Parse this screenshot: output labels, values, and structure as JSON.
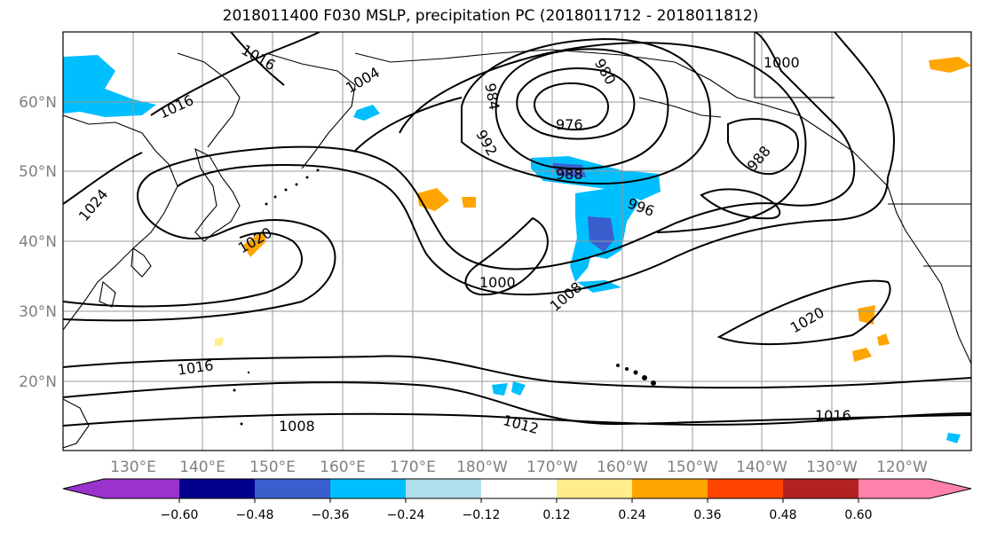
{
  "title": "2018011400 F030 MSLP, precipitation PC (2018011712 - 2018011812)",
  "lat_labels": [
    "60°N",
    "50°N",
    "40°N",
    "30°N",
    "20°N"
  ],
  "lon_labels": [
    "130°E",
    "140°E",
    "150°E",
    "160°E",
    "170°E",
    "180°W",
    "170°W",
    "160°W",
    "150°W",
    "140°W",
    "130°W",
    "120°W"
  ],
  "isobar_labels": [
    "1016",
    "1004",
    "1016",
    "984",
    "980",
    "976",
    "1000",
    "1024",
    "992",
    "988",
    "988",
    "996",
    "1020",
    "1000",
    "1008",
    "1020",
    "1016",
    "1008",
    "1012",
    "1016"
  ],
  "colorbar": {
    "ticks": [
      "−0.60",
      "−0.48",
      "−0.36",
      "−0.24",
      "−0.12",
      "0.12",
      "0.24",
      "0.36",
      "0.48",
      "0.60"
    ],
    "colors": [
      "#9a32cd",
      "#00008b",
      "#3a5fcd",
      "#00bfff",
      "#b2dfee",
      "#ffffff",
      "#ffec8b",
      "#ffa500",
      "#ff4500",
      "#b22222",
      "#ff82ab",
      "#ff82ab"
    ]
  }
}
